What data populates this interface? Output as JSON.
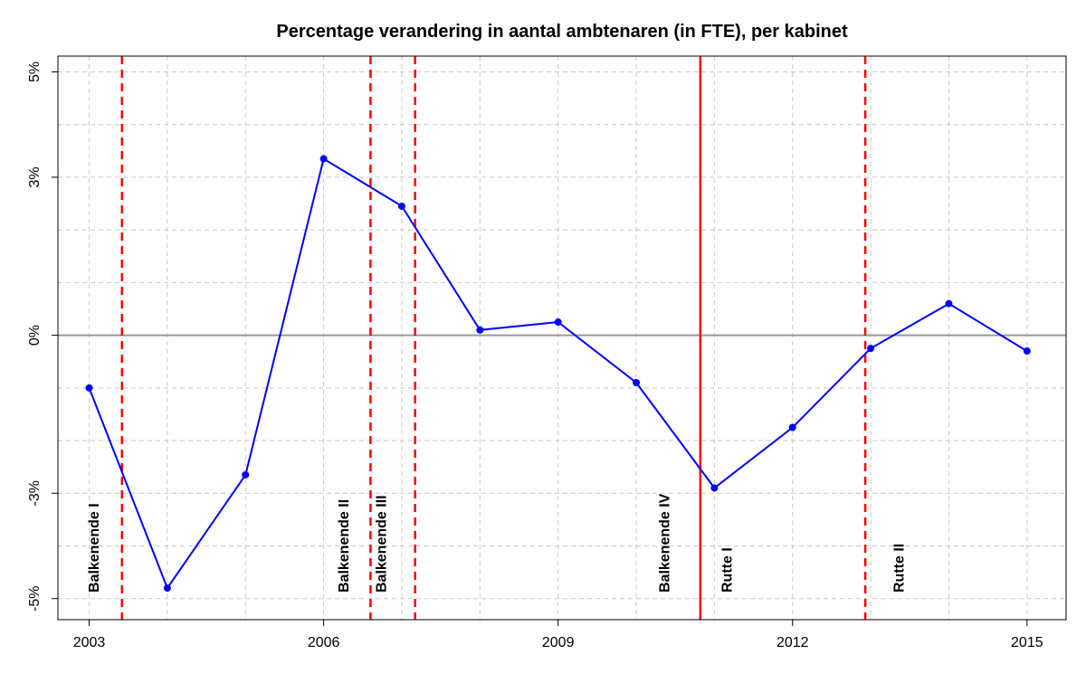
{
  "chart_data": {
    "type": "line",
    "title": "Percentage verandering in aantal ambtenaren (in FTE), per kabinet",
    "xlabel": "",
    "ylabel": "",
    "xlim": [
      2002.6,
      2015.5
    ],
    "ylim": [
      -5.4,
      5.3
    ],
    "x_ticks": [
      2003,
      2006,
      2009,
      2012,
      2015
    ],
    "y_ticks": [
      {
        "value": 5,
        "label": "5%"
      },
      {
        "value": 3,
        "label": "3%"
      },
      {
        "value": 0,
        "label": "0%"
      },
      {
        "value": -3,
        "label": "-3%"
      },
      {
        "value": -5,
        "label": "-5%"
      }
    ],
    "grid": true,
    "legend": "none",
    "series": [
      {
        "color": "#0000FF",
        "x": [
          2003,
          2004,
          2005,
          2006,
          2007,
          2008,
          2009,
          2010,
          2011,
          2012,
          2013,
          2014,
          2015
        ],
        "y": [
          -1.0,
          -4.8,
          -2.65,
          3.35,
          2.45,
          0.1,
          0.25,
          -0.9,
          -2.9,
          -1.75,
          -0.25,
          0.6,
          -0.3
        ]
      }
    ],
    "reference_line": {
      "y": 0,
      "color": "#999999"
    },
    "cabinet_lines": [
      {
        "x": 2003.42,
        "style": "dashed",
        "color": "#FF0000"
      },
      {
        "x": 2006.6,
        "style": "dashed",
        "color": "#FF0000"
      },
      {
        "x": 2007.17,
        "style": "dashed",
        "color": "#FF0000"
      },
      {
        "x": 2010.82,
        "style": "solid",
        "color": "#FF0000"
      },
      {
        "x": 2012.93,
        "style": "dashed",
        "color": "#FF0000"
      }
    ],
    "cabinet_labels": [
      {
        "text": "Balkenende I",
        "x": 2003.12
      },
      {
        "text": "Balkenende II",
        "x": 2006.32
      },
      {
        "text": "Balkenende III",
        "x": 2006.8
      },
      {
        "text": "Balkenende IV",
        "x": 2010.42
      },
      {
        "text": "Rutte I",
        "x": 2011.22
      },
      {
        "text": "Rutte II",
        "x": 2013.42
      }
    ]
  }
}
